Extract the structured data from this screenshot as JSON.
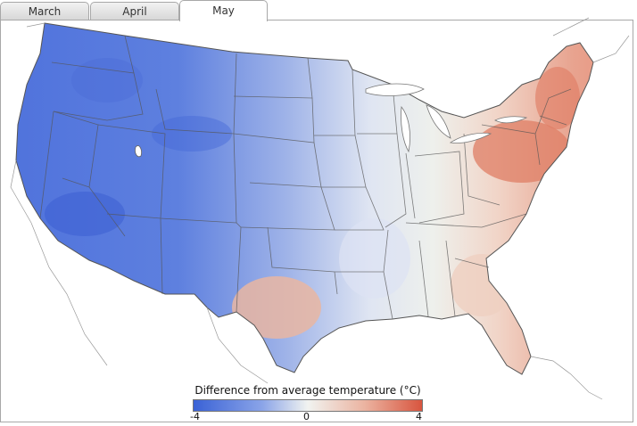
{
  "tabs": [
    {
      "label": "March",
      "active": false
    },
    {
      "label": "April",
      "active": false
    },
    {
      "label": "May",
      "active": true
    }
  ],
  "legend": {
    "title": "Difference from average temperature (°C)",
    "min_label": "-4",
    "mid_label": "0",
    "max_label": "4",
    "range": [
      -4,
      4
    ],
    "colors": [
      "#3a62d6",
      "#f1f3f0",
      "#d8553f"
    ]
  }
}
